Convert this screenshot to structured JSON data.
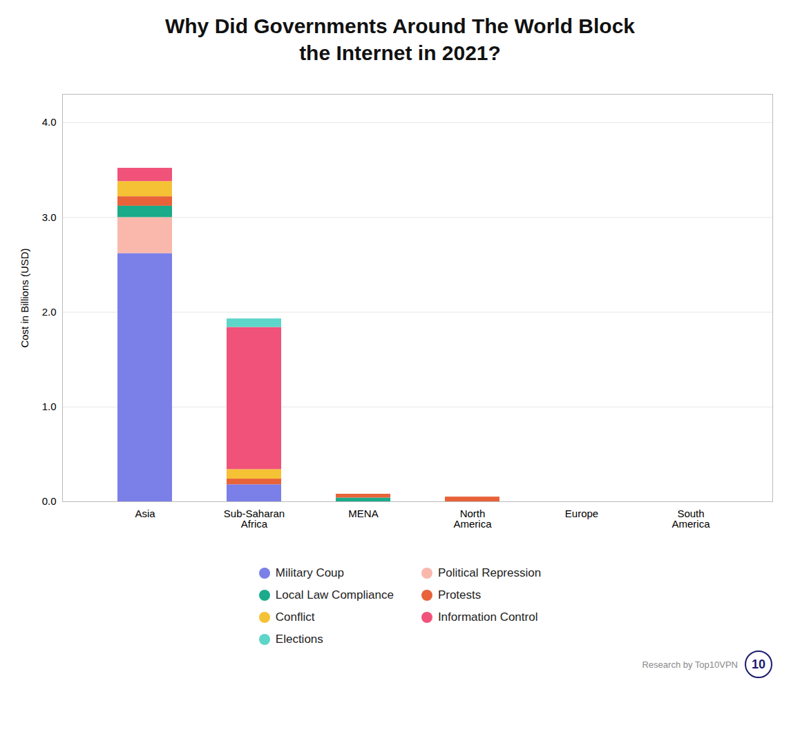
{
  "chart_data": {
    "type": "bar",
    "stacked": true,
    "title": "Why Did Governments Around The World Block\nthe Internet in 2021?",
    "y_label": "Cost in Billions (USD)",
    "categories": [
      "Asia",
      "Sub-Saharan\nAfrica",
      "MENA",
      "North\nAmerica",
      "Europe",
      "South\nAmerica"
    ],
    "series": [
      {
        "name": "Military Coup",
        "color": "#7b7fe8",
        "values": [
          2.62,
          0.18,
          0.0,
          0.0,
          0.0,
          0.0
        ]
      },
      {
        "name": "Political Repression",
        "color": "#f9b8ab",
        "values": [
          0.38,
          0.0,
          0.0,
          0.0,
          0.0,
          0.0
        ]
      },
      {
        "name": "Local Law Compliance",
        "color": "#1aab8a",
        "values": [
          0.12,
          0.0,
          0.04,
          0.0,
          0.0,
          0.0
        ]
      },
      {
        "name": "Protests",
        "color": "#e8623a",
        "values": [
          0.1,
          0.06,
          0.04,
          0.05,
          0.0,
          0.0
        ]
      },
      {
        "name": "Conflict",
        "color": "#f5c235",
        "values": [
          0.16,
          0.1,
          0.0,
          0.0,
          0.0,
          0.0
        ]
      },
      {
        "name": "Information Control",
        "color": "#f0527a",
        "values": [
          0.14,
          1.5,
          0.0,
          0.0,
          0.0,
          0.0
        ]
      },
      {
        "name": "Elections",
        "color": "#5dd5c8",
        "values": [
          0.0,
          0.09,
          0.0,
          0.0,
          0.0,
          0.0
        ]
      }
    ],
    "ylim": [
      0,
      4.3
    ],
    "yticks": [
      0,
      1,
      2,
      3,
      4
    ],
    "grid": true,
    "legend": "bottom",
    "annotations": [
      "Research by Top10VPN",
      "10"
    ]
  }
}
